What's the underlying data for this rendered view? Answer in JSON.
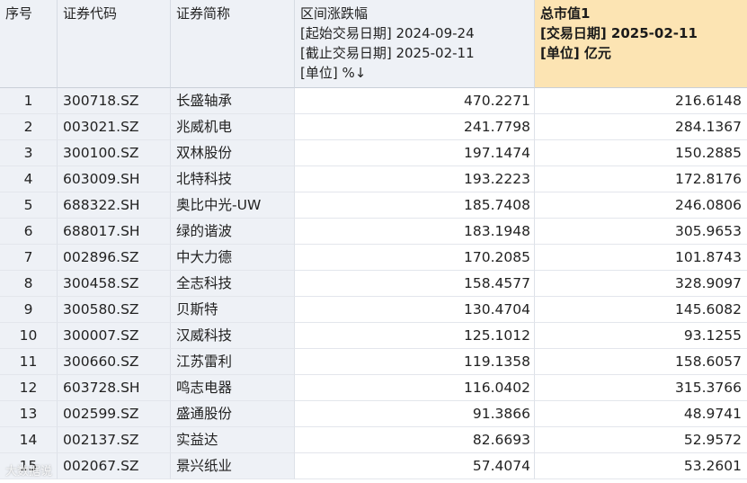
{
  "columns": {
    "seq": "序号",
    "code": "证券代码",
    "name": "证券简称",
    "change": {
      "title": "区间涨跌幅",
      "start": "[起始交易日期] 2024-09-24",
      "end": "[截止交易日期] 2025-02-11",
      "unit": "[单位] %↓"
    },
    "mktcap": {
      "title": "总市值1",
      "date": "[交易日期] 2025-02-11",
      "unit": "[单位] 亿元"
    }
  },
  "rows": [
    {
      "seq": "1",
      "code": "300718.SZ",
      "name": "长盛轴承",
      "change": "470.2271",
      "mktcap": "216.6148"
    },
    {
      "seq": "2",
      "code": "003021.SZ",
      "name": "兆威机电",
      "change": "241.7798",
      "mktcap": "284.1367"
    },
    {
      "seq": "3",
      "code": "300100.SZ",
      "name": "双林股份",
      "change": "197.1474",
      "mktcap": "150.2885"
    },
    {
      "seq": "4",
      "code": "603009.SH",
      "name": "北特科技",
      "change": "193.2223",
      "mktcap": "172.8176"
    },
    {
      "seq": "5",
      "code": "688322.SH",
      "name": "奥比中光-UW",
      "change": "185.7408",
      "mktcap": "246.0806"
    },
    {
      "seq": "6",
      "code": "688017.SH",
      "name": "绿的谐波",
      "change": "183.1948",
      "mktcap": "305.9653"
    },
    {
      "seq": "7",
      "code": "002896.SZ",
      "name": "中大力德",
      "change": "170.2085",
      "mktcap": "101.8743"
    },
    {
      "seq": "8",
      "code": "300458.SZ",
      "name": "全志科技",
      "change": "158.4577",
      "mktcap": "328.9097"
    },
    {
      "seq": "9",
      "code": "300580.SZ",
      "name": "贝斯特",
      "change": "130.4704",
      "mktcap": "145.6082"
    },
    {
      "seq": "10",
      "code": "300007.SZ",
      "name": "汉威科技",
      "change": "125.1012",
      "mktcap": "93.1255"
    },
    {
      "seq": "11",
      "code": "300660.SZ",
      "name": "江苏雷利",
      "change": "119.1358",
      "mktcap": "158.6057"
    },
    {
      "seq": "12",
      "code": "603728.SH",
      "name": "鸣志电器",
      "change": "116.0402",
      "mktcap": "315.3766"
    },
    {
      "seq": "13",
      "code": "002599.SZ",
      "name": "盛通股份",
      "change": "91.3866",
      "mktcap": "48.9741"
    },
    {
      "seq": "14",
      "code": "002137.SZ",
      "name": "实益达",
      "change": "82.6693",
      "mktcap": "52.9572"
    },
    {
      "seq": "15",
      "code": "002067.SZ",
      "name": "景兴纸业",
      "change": "57.4074",
      "mktcap": "53.2601"
    }
  ],
  "watermark": "大数据说"
}
